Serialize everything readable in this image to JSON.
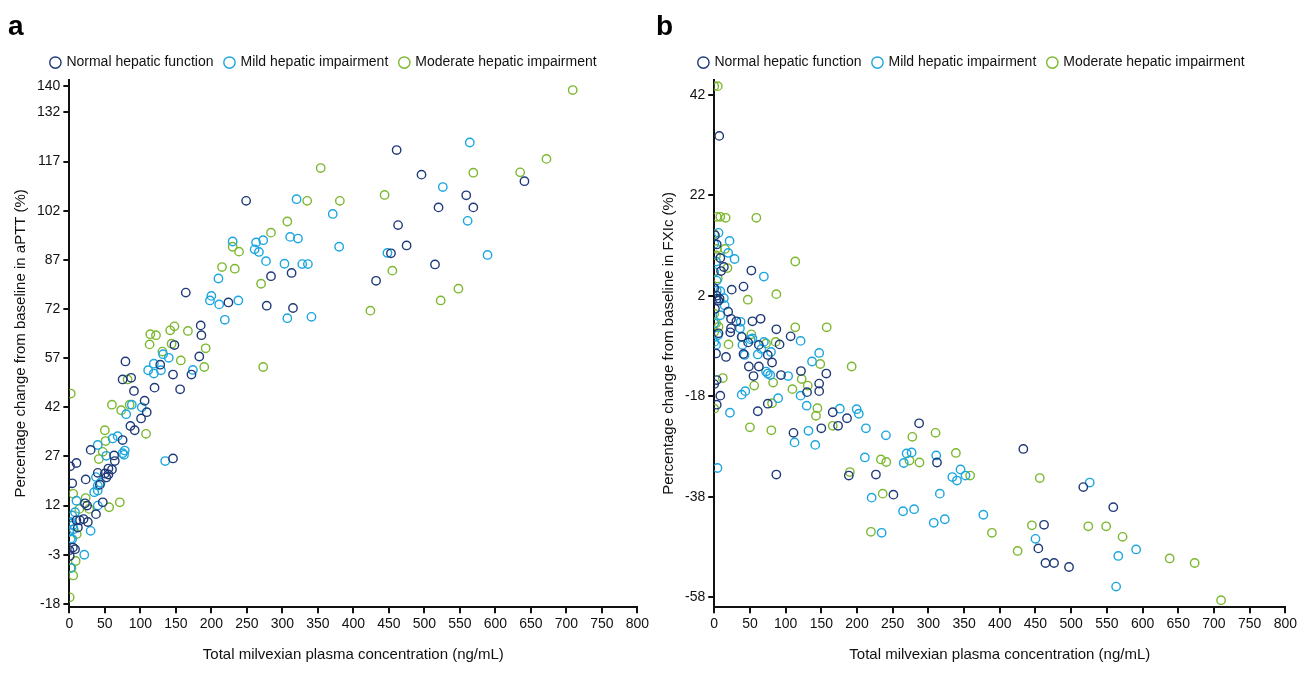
{
  "chart_data": [
    {
      "type": "scatter",
      "title": "a",
      "xlabel": "Total milvexian plasma concentration (ng/mL)",
      "ylabel": "Percentage change from baseline in aPTT (%)",
      "xlim": [
        0,
        800
      ],
      "xticks": [
        0,
        50,
        100,
        150,
        200,
        250,
        300,
        350,
        400,
        450,
        500,
        550,
        600,
        650,
        700,
        750,
        800
      ],
      "ylim": [
        -19,
        142
      ],
      "yticks": [
        -18,
        -3,
        12,
        27,
        42,
        57,
        72,
        87,
        102,
        117,
        132,
        140
      ],
      "grid": false,
      "legend": "top",
      "marker": "circle",
      "series": [
        {
          "name": "Normal hepatic function",
          "color": "#1f3a78",
          "x": [
            249,
            164,
            284,
            224,
            278,
            185,
            186,
            148,
            183,
            79,
            128,
            75,
            87,
            146,
            172,
            91,
            120,
            156,
            106,
            109,
            101,
            86,
            92,
            75,
            30,
            63,
            64,
            146,
            10,
            1,
            55,
            60,
            40,
            50,
            52,
            55,
            23,
            4,
            43,
            22,
            25,
            47,
            37.5,
            20,
            10,
            26,
            15,
            12,
            5,
            8,
            0,
            0.5,
            461,
            496,
            641,
            559,
            569,
            520,
            463,
            475,
            453,
            515,
            432,
            313,
            315
          ],
          "values": [
            105,
            77,
            82,
            74,
            73,
            67,
            64,
            61,
            57.5,
            56,
            55,
            50.5,
            51,
            52,
            52,
            47,
            48,
            47.5,
            44,
            40.5,
            38.6,
            36.3,
            35,
            32,
            29,
            27.3,
            25.6,
            26.4,
            25,
            24,
            23.3,
            23,
            22,
            21.8,
            20.6,
            21.5,
            20,
            18.8,
            18.4,
            12.7,
            12,
            13,
            9.4,
            7.9,
            7.5,
            7,
            7.5,
            5.3,
            -0.8,
            -1.3,
            -1.6,
            -3.4,
            120.5,
            113,
            111,
            106.7,
            103,
            103,
            97.6,
            91.4,
            89,
            85.6,
            80.6,
            83,
            72.3
          ]
        },
        {
          "name": "Mild hepatic impairment",
          "color": "#1ba6e0",
          "x": [
            320,
            371,
            380,
            230,
            263,
            273,
            261,
            267,
            311,
            322,
            277,
            303,
            328,
            336,
            210,
            200,
            198,
            211,
            238,
            219,
            307,
            341,
            111,
            119,
            119,
            129,
            132,
            140,
            174,
            80,
            88,
            102,
            68,
            61,
            40,
            52,
            75,
            78,
            77,
            135,
            37.5,
            40,
            44,
            35,
            40,
            40,
            10,
            8,
            4,
            1,
            6,
            0,
            4,
            30,
            21,
            1.8,
            2,
            5,
            564,
            526,
            561,
            589,
            448
          ],
          "values": [
            105.5,
            101,
            91,
            92.6,
            92.3,
            93,
            90.2,
            89.4,
            94,
            93.5,
            86.6,
            85.8,
            85.7,
            85.7,
            81.3,
            76,
            74.6,
            73.4,
            74.6,
            68.7,
            69.2,
            69.6,
            53.3,
            55.3,
            52.3,
            53.3,
            58.2,
            57.1,
            53.4,
            39.9,
            42.8,
            42,
            33.2,
            32.5,
            30.5,
            27.2,
            28,
            28.8,
            27.5,
            25.6,
            20.7,
            18.1,
            19,
            16.1,
            16.6,
            12,
            13.5,
            10,
            9,
            7,
            4.8,
            4,
            1.8,
            4.3,
            -3,
            -7,
            2,
            6,
            122.8,
            109.2,
            98.9,
            88.5,
            89.1
          ]
        },
        {
          "name": "Moderate hepatic impairment",
          "color": "#7cb82f",
          "x": [
            354,
            335,
            381,
            307,
            284,
            230,
            239,
            215,
            233,
            270,
            273,
            114,
            122,
            113,
            142,
            148,
            167,
            144,
            131,
            157,
            192,
            190,
            82,
            2,
            60,
            73,
            85,
            108,
            50,
            51,
            47,
            41.5,
            5.4,
            23,
            28,
            14,
            71,
            56,
            10.4,
            8.9,
            3,
            5.4,
            0.5,
            709,
            672,
            635,
            569,
            444,
            455,
            548,
            523,
            424
          ],
          "values": [
            115,
            105,
            105,
            98.7,
            95.3,
            91,
            89.5,
            84.8,
            84.3,
            79.7,
            54.3,
            64.3,
            64,
            61.2,
            65.5,
            66.7,
            65.3,
            61.4,
            59,
            56.3,
            60,
            54.3,
            50.5,
            46.2,
            42.8,
            41.1,
            42.8,
            33.9,
            35,
            31.7,
            28.4,
            26.2,
            15.6,
            14.3,
            11,
            11,
            13,
            11.5,
            3.3,
            -4.9,
            -7,
            -9.3,
            -16,
            138.8,
            117.8,
            113.7,
            113.6,
            106.8,
            83.7,
            78.2,
            74.6,
            71.5
          ]
        }
      ]
    },
    {
      "type": "scatter",
      "title": "b",
      "xlabel": "Total milvexian plasma concentration (ng/mL)",
      "ylabel": "Percentage change from baseline in FXIc (%)",
      "xlim": [
        0,
        800
      ],
      "xticks": [
        0,
        50,
        100,
        150,
        200,
        250,
        300,
        350,
        400,
        450,
        500,
        550,
        600,
        650,
        700,
        750,
        800
      ],
      "ylim": [
        -60,
        45
      ],
      "yticks": [
        -58,
        -38,
        -18,
        2,
        22,
        42
      ],
      "grid": false,
      "legend": "top",
      "marker": "circle",
      "series": [
        {
          "name": "Normal hepatic function",
          "color": "#1f3a78",
          "x": [
            7,
            1,
            3.5,
            8.5,
            13.5,
            9.5,
            52,
            24.5,
            41,
            0,
            3.5,
            6,
            1,
            3.5,
            7.5,
            19.5,
            23.5,
            31,
            23.5,
            22.5,
            53.5,
            65,
            6,
            2.5,
            16.5,
            38.5,
            41,
            47.5,
            62.5,
            55,
            48.5,
            62.5,
            75,
            81,
            93.5,
            87,
            91.5,
            107,
            121.5,
            157,
            147,
            147,
            130,
            0,
            3.5,
            8.5,
            3.5,
            75,
            61,
            111,
            150,
            166,
            186,
            173.5,
            87,
            188.5,
            226.5,
            287,
            251,
            312,
            433,
            517,
            559,
            462,
            454,
            464,
            476,
            497
          ],
          "values": [
            33.8,
            14,
            12.2,
            9.5,
            7.7,
            6.9,
            7,
            3.2,
            3.8,
            3.5,
            2,
            1,
            -0.6,
            1.4,
            1.4,
            -1.2,
            -2.6,
            -3.1,
            -4.5,
            -5.3,
            -3.1,
            -2.6,
            -5.5,
            -9.5,
            -10.2,
            -6.2,
            -9.6,
            -7.3,
            -7.8,
            -14,
            -12.1,
            -12.1,
            -9.8,
            -11.3,
            -13.8,
            -4.7,
            -7.7,
            -6.1,
            -13,
            -13.5,
            -15.5,
            -17,
            -17.2,
            -15.6,
            -14.8,
            -17.9,
            -19.7,
            -19.5,
            -21,
            -25.3,
            -24.4,
            -21.2,
            -22.4,
            -23.9,
            -33.6,
            -33.8,
            -33.6,
            -23.4,
            -37.6,
            -31.2,
            -28.5,
            -36.1,
            -40.1,
            -43.6,
            -48.3,
            -51.2,
            -51.2,
            -52
          ]
        },
        {
          "name": "Mild hepatic impairment",
          "color": "#1ba6e0",
          "x": [
            6,
            0,
            21.5,
            19.5,
            28.5,
            2.5,
            0,
            3.5,
            8.5,
            13.5,
            3.5,
            69.5,
            14.5,
            8.5,
            0,
            5,
            0,
            2.5,
            37,
            36,
            38.5,
            51,
            39.5,
            42.5,
            53.5,
            69.5,
            66,
            61,
            79.5,
            75,
            78.5,
            72.5,
            121,
            137,
            147,
            103.5,
            38.5,
            43.5,
            89.5,
            22,
            121,
            129.5,
            132,
            112.5,
            141.5,
            176,
            199.5,
            202.5,
            212.5,
            240.5,
            211,
            265.5,
            269.5,
            276.5,
            311,
            4.5,
            220.5,
            234.5,
            264.5,
            280,
            307.5,
            323,
            316,
            333.5,
            340,
            345,
            352,
            377,
            526,
            450,
            591,
            566,
            563
          ],
          "values": [
            14.5,
            12.3,
            12.9,
            10.5,
            9.3,
            8.8,
            6.7,
            5,
            2.9,
            1.5,
            3,
            5.8,
            0.1,
            -1.9,
            -3.5,
            -5.9,
            -7.2,
            -7.8,
            -3.2,
            -4.5,
            -6.2,
            -6.7,
            -7.8,
            -9.8,
            -6.5,
            -7.2,
            -8.6,
            -9.7,
            -9.2,
            -13.5,
            -13.8,
            -13.1,
            -7,
            -11.1,
            -9.4,
            -14,
            -17.7,
            -17,
            -18.4,
            -21.3,
            -17.9,
            -19.9,
            -24.9,
            -27.2,
            -27.7,
            -20.5,
            -20.6,
            -21.5,
            -24.4,
            -25.8,
            -30.2,
            -31.3,
            -29.4,
            -29.2,
            -29.8,
            -32.3,
            -38.2,
            -45.2,
            -40.9,
            -40.5,
            -43.2,
            -42.5,
            -37.4,
            -34.1,
            -34.8,
            -32.6,
            -33.8,
            -41.6,
            -35.2,
            -46.4,
            -48.5,
            -49.8,
            -55.9
          ]
        },
        {
          "name": "Moderate hepatic impairment",
          "color": "#7cb82f",
          "x": [
            0,
            5,
            3.5,
            8.5,
            16,
            59,
            0,
            3.5,
            15,
            18.5,
            5,
            2.5,
            113.5,
            47,
            87,
            113.5,
            157.5,
            0,
            2.5,
            0,
            6,
            20,
            52,
            72.5,
            86,
            148.5,
            192.5,
            12,
            56,
            82.5,
            122.5,
            131,
            109.5,
            0,
            50,
            80,
            81,
            144.5,
            142.5,
            166,
            190,
            233.5,
            241,
            273.5,
            287.5,
            277.5,
            310,
            338.5,
            236,
            219.5,
            358.5,
            456,
            445,
            389,
            425,
            524,
            549,
            572,
            638,
            673,
            710
          ],
          "values": [
            43.7,
            43.7,
            17.7,
            17.7,
            17.5,
            17.5,
            14.3,
            11.3,
            11.3,
            7.5,
            5.4,
            10,
            8.8,
            1.2,
            2.3,
            -4.3,
            -4.3,
            -1.6,
            -3.5,
            -5.2,
            -4.2,
            -7.7,
            -5.7,
            -7.5,
            -7.2,
            -11.6,
            -12.1,
            -14.4,
            -15.9,
            -15.3,
            -14.6,
            -15.9,
            -16.6,
            -20.5,
            -24.2,
            -24.8,
            -19.4,
            -20.4,
            -21.9,
            -23.9,
            -33.1,
            -30.6,
            -31.1,
            -30.8,
            -31.2,
            -26.1,
            -25.3,
            -29.3,
            -37.4,
            -45,
            -33.8,
            -34.3,
            -43.7,
            -45.2,
            -48.8,
            -43.9,
            -43.9,
            -46,
            -50.3,
            -51.2,
            -58.6
          ]
        }
      ]
    }
  ]
}
